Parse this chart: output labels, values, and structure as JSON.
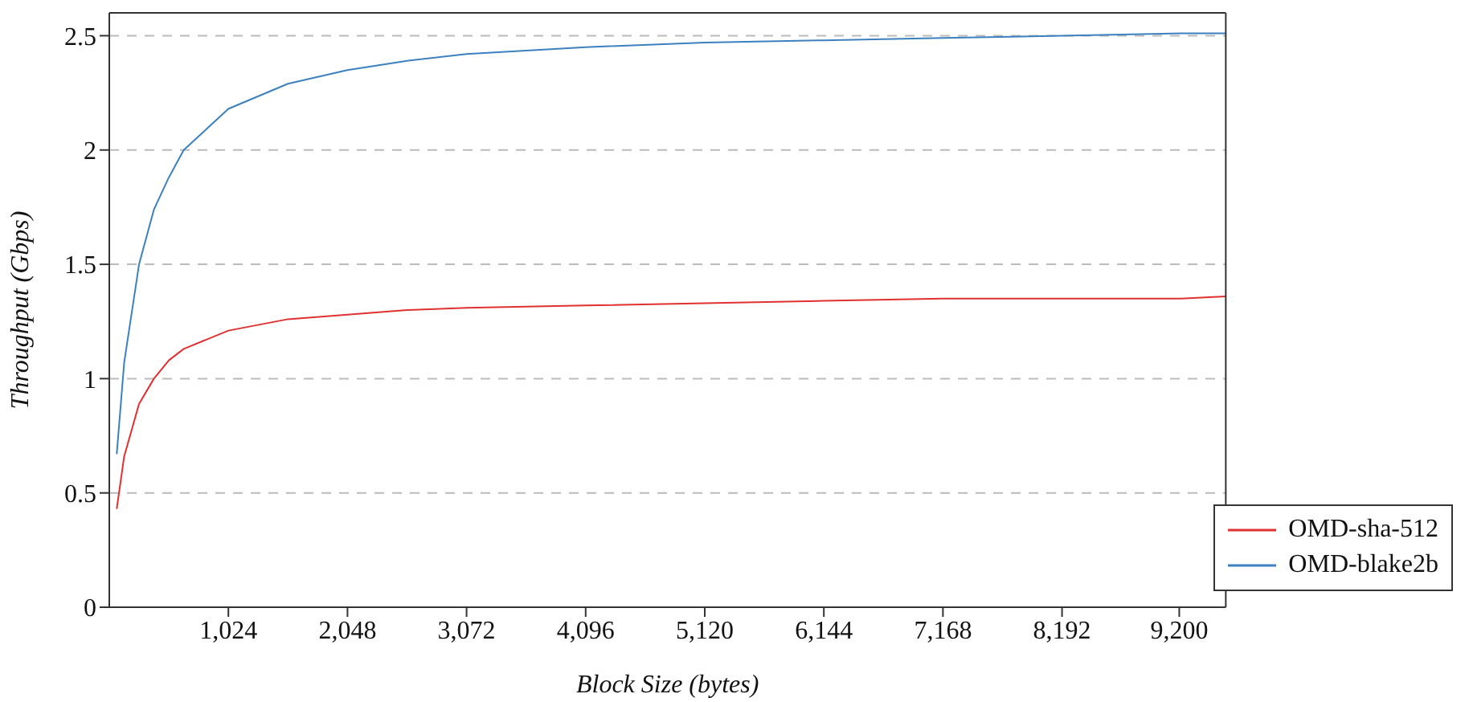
{
  "chart_data": {
    "type": "line",
    "xlabel": "Block Size (bytes)",
    "ylabel": "Throughput (Gbps)",
    "x": [
      64,
      128,
      256,
      384,
      512,
      640,
      1024,
      1536,
      2048,
      2560,
      3072,
      4096,
      5120,
      6144,
      7168,
      8192,
      9216,
      9600
    ],
    "series": [
      {
        "name": "OMD-sha-512",
        "color": "#e03030",
        "values": [
          0.43,
          0.66,
          0.89,
          1.0,
          1.08,
          1.13,
          1.21,
          1.26,
          1.28,
          1.3,
          1.31,
          1.32,
          1.33,
          1.34,
          1.35,
          1.35,
          1.35,
          1.36
        ]
      },
      {
        "name": "OMD-blake2b",
        "color": "#3c80c0",
        "values": [
          0.67,
          1.07,
          1.5,
          1.74,
          1.88,
          2.0,
          2.18,
          2.29,
          2.35,
          2.39,
          2.42,
          2.45,
          2.47,
          2.48,
          2.49,
          2.5,
          2.51,
          2.51
        ]
      }
    ],
    "xlim": [
      0,
      9600
    ],
    "xticks": [
      {
        "value": 1024,
        "label": "1,024"
      },
      {
        "value": 2048,
        "label": "2,048"
      },
      {
        "value": 3072,
        "label": "3,072"
      },
      {
        "value": 4096,
        "label": "4,096"
      },
      {
        "value": 5120,
        "label": "5,120"
      },
      {
        "value": 6144,
        "label": "6,144"
      },
      {
        "value": 7168,
        "label": "7,168"
      },
      {
        "value": 8192,
        "label": "8,192"
      },
      {
        "value": 9200,
        "label": "9,200"
      }
    ],
    "ylim": [
      0,
      2.6
    ],
    "yticks": [
      0,
      0.5,
      1,
      1.5,
      2,
      2.5
    ],
    "grid": "y",
    "legend": "bottom right",
    "marker": "none",
    "line_style": "solid"
  }
}
